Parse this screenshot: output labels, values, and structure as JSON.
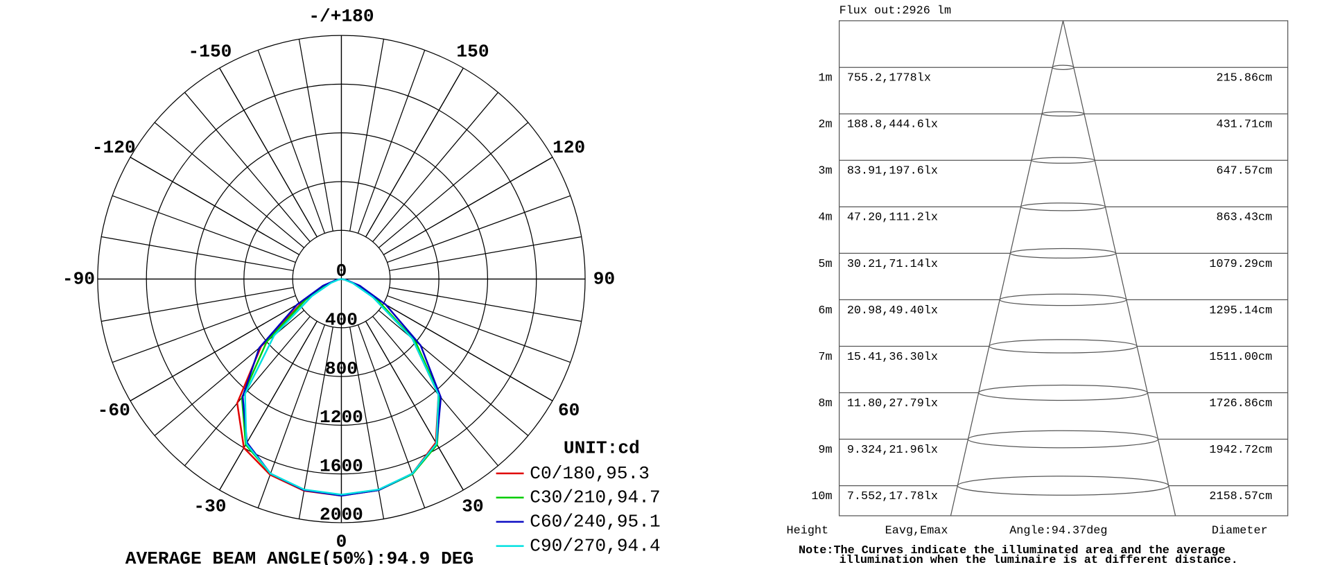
{
  "chart_data": {
    "type": "polar",
    "unit": "UNIT:cd",
    "footer": "AVERAGE BEAM ANGLE(50%):94.9 DEG",
    "rlim": [
      0,
      2000
    ],
    "rticks": [
      0,
      400,
      800,
      1200,
      1600,
      2000
    ],
    "aticks": [
      0,
      30,
      60,
      90,
      120,
      150,
      {
        "value": 180,
        "label": "-/+180"
      },
      -150,
      -120,
      -90,
      -60,
      -30
    ],
    "angles": [
      -90,
      -80,
      -70,
      -60,
      -50,
      -40,
      -30,
      -20,
      -10,
      0,
      10,
      20,
      30,
      40,
      50,
      60,
      70,
      80,
      90
    ],
    "series": [
      {
        "name": "C0/180,95.3",
        "color": "#e00000",
        "values": [
          0,
          30,
          130,
          360,
          860,
          1330,
          1600,
          1710,
          1765,
          1778,
          1760,
          1700,
          1550,
          1240,
          760,
          330,
          120,
          30,
          0
        ]
      },
      {
        "name": "C30/210,94.7",
        "color": "#00cc00",
        "values": [
          0,
          30,
          120,
          340,
          800,
          1270,
          1570,
          1700,
          1760,
          1775,
          1760,
          1705,
          1570,
          1260,
          790,
          340,
          120,
          30,
          0
        ]
      },
      {
        "name": "C60/240,95.1",
        "color": "#0000c0",
        "values": [
          0,
          40,
          160,
          420,
          880,
          1260,
          1550,
          1700,
          1760,
          1778,
          1760,
          1700,
          1560,
          1270,
          850,
          420,
          160,
          40,
          0
        ]
      },
      {
        "name": "C90/270,94.4",
        "color": "#00e0e0",
        "values": [
          0,
          20,
          90,
          280,
          720,
          1230,
          1560,
          1700,
          1755,
          1770,
          1755,
          1700,
          1560,
          1240,
          760,
          300,
          100,
          25,
          0
        ]
      }
    ]
  },
  "illuminance": {
    "title": "Flux out:2926 lm",
    "rows": [
      {
        "height": "1m",
        "value": "755.2,1778lx",
        "diameter": "215.86cm"
      },
      {
        "height": "2m",
        "value": "188.8,444.6lx",
        "diameter": "431.71cm"
      },
      {
        "height": "3m",
        "value": "83.91,197.6lx",
        "diameter": "647.57cm"
      },
      {
        "height": "4m",
        "value": "47.20,111.2lx",
        "diameter": "863.43cm"
      },
      {
        "height": "5m",
        "value": "30.21,71.14lx",
        "diameter": "1079.29cm"
      },
      {
        "height": "6m",
        "value": "20.98,49.40lx",
        "diameter": "1295.14cm"
      },
      {
        "height": "7m",
        "value": "15.41,36.30lx",
        "diameter": "1511.00cm"
      },
      {
        "height": "8m",
        "value": "11.80,27.79lx",
        "diameter": "1726.86cm"
      },
      {
        "height": "9m",
        "value": "9.324,21.96lx",
        "diameter": "1942.72cm"
      },
      {
        "height": "10m",
        "value": "7.552,17.78lx",
        "diameter": "2158.57cm"
      }
    ],
    "columns": [
      "Height",
      "Eavg,Emax",
      "Angle:94.37deg",
      "Diameter"
    ],
    "note": [
      "Note:The Curves indicate the illuminated area and the average",
      "illumination when the luminaire is at different distance."
    ]
  }
}
